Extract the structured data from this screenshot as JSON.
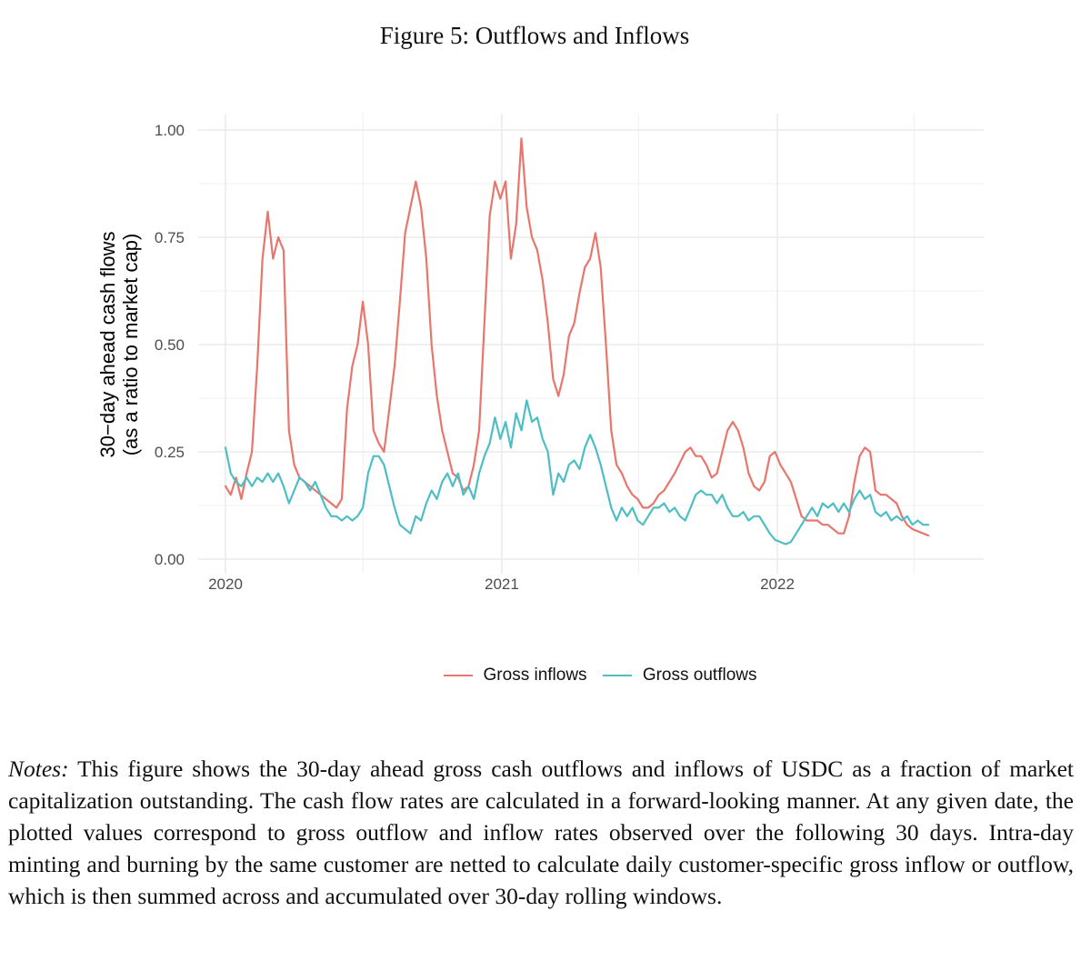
{
  "figure": {
    "title": "Figure 5: Outflows and Inflows"
  },
  "chart_data": {
    "type": "line",
    "ylabel_line1": "30−day ahead cash flows",
    "ylabel_line2": "(as a ratio to market cap)",
    "xlabel": "",
    "x_ticks": [
      "2020",
      "2021",
      "2022"
    ],
    "y_ticks": [
      "0.00",
      "0.25",
      "0.50",
      "0.75",
      "1.00"
    ],
    "ylim": [
      0,
      1.0
    ],
    "xlim": [
      "2019-12-18",
      "2022-09-28"
    ],
    "grid": true,
    "legend_position": "bottom",
    "series": [
      {
        "name": "Gross inflows",
        "color": "#e8766d",
        "points": [
          [
            "2020-01-01",
            0.17
          ],
          [
            "2020-01-08",
            0.15
          ],
          [
            "2020-01-15",
            0.19
          ],
          [
            "2020-01-22",
            0.14
          ],
          [
            "2020-01-29",
            0.2
          ],
          [
            "2020-02-05",
            0.25
          ],
          [
            "2020-02-12",
            0.45
          ],
          [
            "2020-02-19",
            0.7
          ],
          [
            "2020-02-26",
            0.81
          ],
          [
            "2020-03-04",
            0.7
          ],
          [
            "2020-03-11",
            0.75
          ],
          [
            "2020-03-18",
            0.72
          ],
          [
            "2020-03-25",
            0.3
          ],
          [
            "2020-04-01",
            0.22
          ],
          [
            "2020-04-08",
            0.19
          ],
          [
            "2020-04-22",
            0.17
          ],
          [
            "2020-05-06",
            0.15
          ],
          [
            "2020-05-20",
            0.13
          ],
          [
            "2020-05-27",
            0.12
          ],
          [
            "2020-06-03",
            0.14
          ],
          [
            "2020-06-10",
            0.35
          ],
          [
            "2020-06-17",
            0.45
          ],
          [
            "2020-06-24",
            0.5
          ],
          [
            "2020-07-01",
            0.6
          ],
          [
            "2020-07-08",
            0.5
          ],
          [
            "2020-07-15",
            0.3
          ],
          [
            "2020-07-22",
            0.27
          ],
          [
            "2020-07-29",
            0.25
          ],
          [
            "2020-08-05",
            0.35
          ],
          [
            "2020-08-12",
            0.45
          ],
          [
            "2020-08-19",
            0.6
          ],
          [
            "2020-08-26",
            0.76
          ],
          [
            "2020-09-02",
            0.82
          ],
          [
            "2020-09-09",
            0.88
          ],
          [
            "2020-09-16",
            0.82
          ],
          [
            "2020-09-23",
            0.7
          ],
          [
            "2020-09-30",
            0.5
          ],
          [
            "2020-10-07",
            0.38
          ],
          [
            "2020-10-14",
            0.3
          ],
          [
            "2020-10-21",
            0.25
          ],
          [
            "2020-10-28",
            0.2
          ],
          [
            "2020-11-04",
            0.19
          ],
          [
            "2020-11-11",
            0.16
          ],
          [
            "2020-11-18",
            0.17
          ],
          [
            "2020-11-25",
            0.22
          ],
          [
            "2020-12-02",
            0.3
          ],
          [
            "2020-12-09",
            0.55
          ],
          [
            "2020-12-16",
            0.8
          ],
          [
            "2020-12-23",
            0.88
          ],
          [
            "2020-12-30",
            0.84
          ],
          [
            "2021-01-06",
            0.88
          ],
          [
            "2021-01-13",
            0.7
          ],
          [
            "2021-01-20",
            0.78
          ],
          [
            "2021-01-27",
            0.98
          ],
          [
            "2021-02-03",
            0.82
          ],
          [
            "2021-02-10",
            0.75
          ],
          [
            "2021-02-17",
            0.72
          ],
          [
            "2021-02-24",
            0.65
          ],
          [
            "2021-03-03",
            0.55
          ],
          [
            "2021-03-10",
            0.42
          ],
          [
            "2021-03-17",
            0.38
          ],
          [
            "2021-03-24",
            0.43
          ],
          [
            "2021-03-31",
            0.52
          ],
          [
            "2021-04-07",
            0.55
          ],
          [
            "2021-04-14",
            0.62
          ],
          [
            "2021-04-21",
            0.68
          ],
          [
            "2021-04-28",
            0.7
          ],
          [
            "2021-05-05",
            0.76
          ],
          [
            "2021-05-12",
            0.68
          ],
          [
            "2021-05-19",
            0.5
          ],
          [
            "2021-05-26",
            0.3
          ],
          [
            "2021-06-02",
            0.22
          ],
          [
            "2021-06-09",
            0.2
          ],
          [
            "2021-06-16",
            0.17
          ],
          [
            "2021-06-23",
            0.15
          ],
          [
            "2021-06-30",
            0.14
          ],
          [
            "2021-07-07",
            0.12
          ],
          [
            "2021-07-14",
            0.12
          ],
          [
            "2021-07-21",
            0.13
          ],
          [
            "2021-07-28",
            0.15
          ],
          [
            "2021-08-04",
            0.16
          ],
          [
            "2021-08-18",
            0.2
          ],
          [
            "2021-09-01",
            0.25
          ],
          [
            "2021-09-08",
            0.26
          ],
          [
            "2021-09-15",
            0.24
          ],
          [
            "2021-09-22",
            0.24
          ],
          [
            "2021-09-29",
            0.22
          ],
          [
            "2021-10-06",
            0.19
          ],
          [
            "2021-10-13",
            0.2
          ],
          [
            "2021-10-20",
            0.25
          ],
          [
            "2021-10-27",
            0.3
          ],
          [
            "2021-11-03",
            0.32
          ],
          [
            "2021-11-10",
            0.3
          ],
          [
            "2021-11-17",
            0.26
          ],
          [
            "2021-11-24",
            0.2
          ],
          [
            "2021-12-01",
            0.17
          ],
          [
            "2021-12-08",
            0.16
          ],
          [
            "2021-12-15",
            0.18
          ],
          [
            "2021-12-22",
            0.24
          ],
          [
            "2021-12-29",
            0.25
          ],
          [
            "2022-01-05",
            0.22
          ],
          [
            "2022-01-12",
            0.2
          ],
          [
            "2022-01-19",
            0.18
          ],
          [
            "2022-01-26",
            0.14
          ],
          [
            "2022-02-02",
            0.1
          ],
          [
            "2022-02-09",
            0.09
          ],
          [
            "2022-02-16",
            0.09
          ],
          [
            "2022-02-23",
            0.09
          ],
          [
            "2022-03-02",
            0.08
          ],
          [
            "2022-03-09",
            0.08
          ],
          [
            "2022-03-16",
            0.07
          ],
          [
            "2022-03-23",
            0.06
          ],
          [
            "2022-03-30",
            0.06
          ],
          [
            "2022-04-06",
            0.1
          ],
          [
            "2022-04-13",
            0.18
          ],
          [
            "2022-04-20",
            0.24
          ],
          [
            "2022-04-27",
            0.26
          ],
          [
            "2022-05-04",
            0.25
          ],
          [
            "2022-05-11",
            0.16
          ],
          [
            "2022-05-18",
            0.15
          ],
          [
            "2022-05-25",
            0.15
          ],
          [
            "2022-06-01",
            0.14
          ],
          [
            "2022-06-08",
            0.13
          ],
          [
            "2022-06-15",
            0.1
          ],
          [
            "2022-06-22",
            0.08
          ],
          [
            "2022-06-29",
            0.07
          ],
          [
            "2022-07-06",
            0.065
          ],
          [
            "2022-07-13",
            0.06
          ],
          [
            "2022-07-20",
            0.055
          ]
        ]
      },
      {
        "name": "Gross outflows",
        "color": "#4dbfc4",
        "points": [
          [
            "2020-01-01",
            0.26
          ],
          [
            "2020-01-08",
            0.2
          ],
          [
            "2020-01-15",
            0.18
          ],
          [
            "2020-01-22",
            0.17
          ],
          [
            "2020-01-29",
            0.19
          ],
          [
            "2020-02-05",
            0.17
          ],
          [
            "2020-02-12",
            0.19
          ],
          [
            "2020-02-19",
            0.18
          ],
          [
            "2020-02-26",
            0.2
          ],
          [
            "2020-03-04",
            0.18
          ],
          [
            "2020-03-11",
            0.2
          ],
          [
            "2020-03-18",
            0.17
          ],
          [
            "2020-03-25",
            0.13
          ],
          [
            "2020-04-01",
            0.16
          ],
          [
            "2020-04-08",
            0.19
          ],
          [
            "2020-04-15",
            0.18
          ],
          [
            "2020-04-22",
            0.16
          ],
          [
            "2020-04-29",
            0.18
          ],
          [
            "2020-05-06",
            0.15
          ],
          [
            "2020-05-13",
            0.12
          ],
          [
            "2020-05-20",
            0.1
          ],
          [
            "2020-05-27",
            0.1
          ],
          [
            "2020-06-03",
            0.09
          ],
          [
            "2020-06-10",
            0.1
          ],
          [
            "2020-06-17",
            0.09
          ],
          [
            "2020-06-24",
            0.1
          ],
          [
            "2020-07-01",
            0.12
          ],
          [
            "2020-07-08",
            0.2
          ],
          [
            "2020-07-15",
            0.24
          ],
          [
            "2020-07-22",
            0.24
          ],
          [
            "2020-07-29",
            0.22
          ],
          [
            "2020-08-05",
            0.17
          ],
          [
            "2020-08-12",
            0.12
          ],
          [
            "2020-08-19",
            0.08
          ],
          [
            "2020-08-26",
            0.07
          ],
          [
            "2020-09-02",
            0.06
          ],
          [
            "2020-09-09",
            0.1
          ],
          [
            "2020-09-16",
            0.09
          ],
          [
            "2020-09-23",
            0.13
          ],
          [
            "2020-09-30",
            0.16
          ],
          [
            "2020-10-07",
            0.14
          ],
          [
            "2020-10-14",
            0.18
          ],
          [
            "2020-10-21",
            0.2
          ],
          [
            "2020-10-28",
            0.17
          ],
          [
            "2020-11-04",
            0.2
          ],
          [
            "2020-11-11",
            0.15
          ],
          [
            "2020-11-18",
            0.17
          ],
          [
            "2020-11-25",
            0.14
          ],
          [
            "2020-12-02",
            0.2
          ],
          [
            "2020-12-09",
            0.24
          ],
          [
            "2020-12-16",
            0.27
          ],
          [
            "2020-12-23",
            0.33
          ],
          [
            "2020-12-30",
            0.28
          ],
          [
            "2021-01-06",
            0.32
          ],
          [
            "2021-01-13",
            0.26
          ],
          [
            "2021-01-20",
            0.34
          ],
          [
            "2021-01-27",
            0.3
          ],
          [
            "2021-02-03",
            0.37
          ],
          [
            "2021-02-10",
            0.32
          ],
          [
            "2021-02-17",
            0.33
          ],
          [
            "2021-02-24",
            0.28
          ],
          [
            "2021-03-03",
            0.25
          ],
          [
            "2021-03-10",
            0.15
          ],
          [
            "2021-03-17",
            0.2
          ],
          [
            "2021-03-24",
            0.18
          ],
          [
            "2021-03-31",
            0.22
          ],
          [
            "2021-04-07",
            0.23
          ],
          [
            "2021-04-14",
            0.21
          ],
          [
            "2021-04-21",
            0.26
          ],
          [
            "2021-04-28",
            0.29
          ],
          [
            "2021-05-05",
            0.26
          ],
          [
            "2021-05-12",
            0.22
          ],
          [
            "2021-05-19",
            0.17
          ],
          [
            "2021-05-26",
            0.12
          ],
          [
            "2021-06-02",
            0.09
          ],
          [
            "2021-06-09",
            0.12
          ],
          [
            "2021-06-16",
            0.1
          ],
          [
            "2021-06-23",
            0.12
          ],
          [
            "2021-06-30",
            0.09
          ],
          [
            "2021-07-07",
            0.08
          ],
          [
            "2021-07-14",
            0.1
          ],
          [
            "2021-07-21",
            0.12
          ],
          [
            "2021-07-28",
            0.12
          ],
          [
            "2021-08-04",
            0.13
          ],
          [
            "2021-08-11",
            0.11
          ],
          [
            "2021-08-18",
            0.12
          ],
          [
            "2021-08-25",
            0.1
          ],
          [
            "2021-09-01",
            0.09
          ],
          [
            "2021-09-08",
            0.12
          ],
          [
            "2021-09-15",
            0.15
          ],
          [
            "2021-09-22",
            0.16
          ],
          [
            "2021-09-29",
            0.15
          ],
          [
            "2021-10-06",
            0.15
          ],
          [
            "2021-10-13",
            0.13
          ],
          [
            "2021-10-20",
            0.15
          ],
          [
            "2021-10-27",
            0.12
          ],
          [
            "2021-11-03",
            0.1
          ],
          [
            "2021-11-10",
            0.1
          ],
          [
            "2021-11-17",
            0.11
          ],
          [
            "2021-11-24",
            0.09
          ],
          [
            "2021-12-01",
            0.1
          ],
          [
            "2021-12-08",
            0.1
          ],
          [
            "2021-12-15",
            0.08
          ],
          [
            "2021-12-22",
            0.06
          ],
          [
            "2021-12-29",
            0.045
          ],
          [
            "2022-01-05",
            0.04
          ],
          [
            "2022-01-12",
            0.035
          ],
          [
            "2022-01-19",
            0.04
          ],
          [
            "2022-01-26",
            0.06
          ],
          [
            "2022-02-02",
            0.08
          ],
          [
            "2022-02-09",
            0.1
          ],
          [
            "2022-02-16",
            0.12
          ],
          [
            "2022-02-23",
            0.1
          ],
          [
            "2022-03-02",
            0.13
          ],
          [
            "2022-03-09",
            0.12
          ],
          [
            "2022-03-16",
            0.13
          ],
          [
            "2022-03-23",
            0.11
          ],
          [
            "2022-03-30",
            0.13
          ],
          [
            "2022-04-06",
            0.11
          ],
          [
            "2022-04-13",
            0.14
          ],
          [
            "2022-04-20",
            0.16
          ],
          [
            "2022-04-27",
            0.14
          ],
          [
            "2022-05-04",
            0.15
          ],
          [
            "2022-05-11",
            0.11
          ],
          [
            "2022-05-18",
            0.1
          ],
          [
            "2022-05-25",
            0.11
          ],
          [
            "2022-06-01",
            0.09
          ],
          [
            "2022-06-08",
            0.1
          ],
          [
            "2022-06-15",
            0.09
          ],
          [
            "2022-06-22",
            0.1
          ],
          [
            "2022-06-29",
            0.08
          ],
          [
            "2022-07-06",
            0.09
          ],
          [
            "2022-07-13",
            0.08
          ],
          [
            "2022-07-20",
            0.08
          ]
        ]
      }
    ]
  },
  "notes": {
    "label": "Notes:",
    "text": "This figure shows the 30-day ahead gross cash outflows and inflows of USDC as a fraction of market capitalization outstanding. The cash flow rates are calculated in a forward-looking manner. At any given date, the plotted values correspond to gross outflow and inflow rates observed over the following 30 days. Intra-day minting and burning by the same customer are netted to calculate daily customer-specific gross inflow or outflow, which is then summed across and accumulated over 30-day rolling windows."
  }
}
